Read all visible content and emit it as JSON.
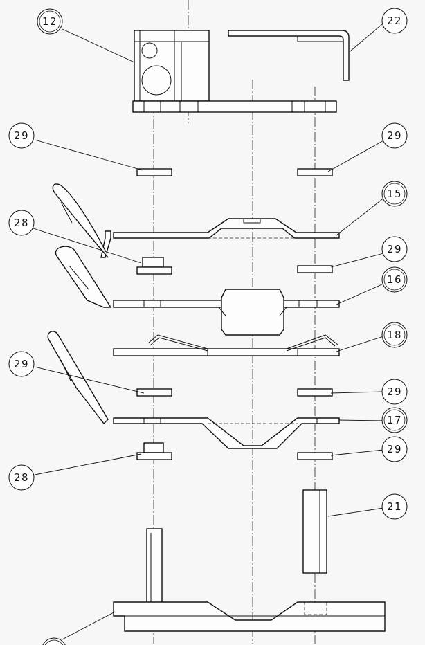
{
  "part_numbers": {
    "p12": "12",
    "p22": "22",
    "p29a": "29",
    "p29b": "29",
    "p15": "15",
    "p28a": "28",
    "p29c": "29",
    "p16": "16",
    "p18": "18",
    "p29d": "29",
    "p29e": "29",
    "p17": "17",
    "p29f": "29",
    "p28b": "28",
    "p21": "21"
  }
}
